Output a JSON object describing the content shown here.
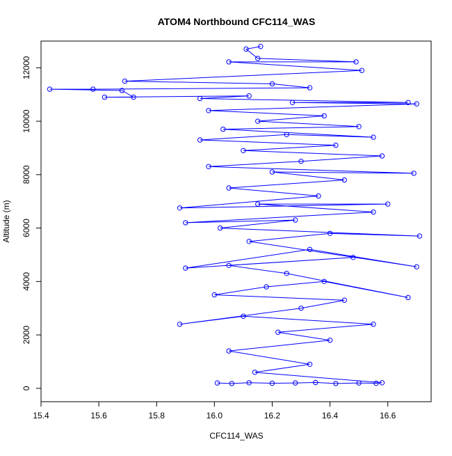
{
  "chart_data": {
    "type": "scatter",
    "title": "ATOM4 Northbound CFC114_WAS",
    "xlabel": "CFC114_WAS",
    "ylabel": "Altitude (m)",
    "xlim": [
      15.4,
      16.75
    ],
    "ylim": [
      -500,
      13000
    ],
    "xticks": [
      "15.4",
      "15.6",
      "15.8",
      "16.0",
      "16.2",
      "16.4",
      "16.6"
    ],
    "yticks": [
      "0",
      "2000",
      "4000",
      "6000",
      "8000",
      "10000",
      "12000"
    ],
    "grid": false,
    "legend": "none",
    "color": "#0000ff",
    "series": [
      {
        "values": [
          [
            16.01,
            200
          ],
          [
            16.06,
            180
          ],
          [
            16.12,
            210
          ],
          [
            16.2,
            190
          ],
          [
            16.28,
            200
          ],
          [
            16.35,
            220
          ],
          [
            16.42,
            180
          ],
          [
            16.5,
            200
          ],
          [
            16.56,
            190
          ],
          [
            16.58,
            210
          ],
          [
            16.14,
            600
          ],
          [
            16.33,
            900
          ],
          [
            16.05,
            1400
          ],
          [
            16.4,
            1800
          ],
          [
            16.22,
            2100
          ],
          [
            16.55,
            2400
          ],
          [
            16.1,
            2700
          ],
          [
            15.88,
            2400
          ],
          [
            16.3,
            3000
          ],
          [
            16.45,
            3300
          ],
          [
            16.0,
            3500
          ],
          [
            16.18,
            3800
          ],
          [
            16.38,
            4000
          ],
          [
            16.67,
            3400
          ],
          [
            16.25,
            4300
          ],
          [
            16.05,
            4600
          ],
          [
            16.48,
            4900
          ],
          [
            15.9,
            4500
          ],
          [
            16.33,
            5200
          ],
          [
            16.7,
            4550
          ],
          [
            16.12,
            5500
          ],
          [
            16.4,
            5800
          ],
          [
            16.71,
            5700
          ],
          [
            16.02,
            6000
          ],
          [
            16.28,
            6300
          ],
          [
            15.9,
            6200
          ],
          [
            16.55,
            6600
          ],
          [
            16.15,
            6900
          ],
          [
            16.6,
            6900
          ],
          [
            15.88,
            6750
          ],
          [
            16.36,
            7200
          ],
          [
            16.05,
            7500
          ],
          [
            16.45,
            7800
          ],
          [
            16.2,
            8100
          ],
          [
            16.69,
            8050
          ],
          [
            15.98,
            8300
          ],
          [
            16.3,
            8500
          ],
          [
            16.58,
            8700
          ],
          [
            16.1,
            8900
          ],
          [
            16.42,
            9100
          ],
          [
            15.95,
            9300
          ],
          [
            16.25,
            9500
          ],
          [
            16.55,
            9400
          ],
          [
            16.03,
            9700
          ],
          [
            16.5,
            9800
          ],
          [
            16.15,
            10000
          ],
          [
            16.38,
            10200
          ],
          [
            15.98,
            10400
          ],
          [
            16.7,
            10650
          ],
          [
            16.27,
            10700
          ],
          [
            16.67,
            10700
          ],
          [
            15.95,
            10850
          ],
          [
            16.12,
            10950
          ],
          [
            15.62,
            10900
          ],
          [
            15.72,
            10900
          ],
          [
            15.68,
            11150
          ],
          [
            15.43,
            11200
          ],
          [
            15.58,
            11200
          ],
          [
            16.33,
            11250
          ],
          [
            16.2,
            11400
          ],
          [
            15.69,
            11500
          ],
          [
            16.51,
            11900
          ],
          [
            16.05,
            12220
          ],
          [
            16.49,
            12220
          ],
          [
            16.15,
            12350
          ],
          [
            16.11,
            12700
          ],
          [
            16.16,
            12800
          ]
        ]
      }
    ]
  }
}
